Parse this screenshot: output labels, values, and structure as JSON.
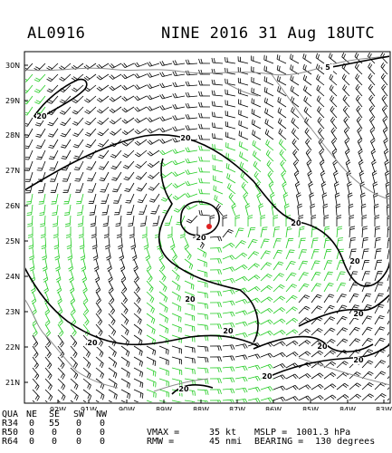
{
  "header": {
    "storm_id": "AL0916",
    "title": "NINE 2016 31 Aug 18UTC"
  },
  "colors": {
    "coast": "#8c8c8c",
    "barb_green": "#22cc22",
    "barb_black": "#000000",
    "contour": "#000000",
    "center_dot": "#e02020"
  },
  "map": {
    "lat_labels": [
      "30N",
      "29N",
      "28N",
      "27N",
      "26N",
      "25N",
      "24N",
      "23N",
      "22N",
      "21N"
    ],
    "lon_labels": [
      "92W",
      "91W",
      "90W",
      "89W",
      "88W",
      "87W",
      "86W",
      "85W",
      "84W",
      "83W"
    ],
    "contour_labels": [
      "5",
      "20",
      "20",
      "20",
      "20",
      "20",
      "20",
      "20",
      "20",
      "20",
      "20",
      "20",
      "20",
      "20"
    ]
  },
  "table": {
    "header": [
      "QUA",
      "NE",
      "SE",
      "SW",
      "NW"
    ],
    "rows": [
      {
        "name": "R34",
        "values": [
          "0",
          "55",
          "0",
          "0"
        ]
      },
      {
        "name": "R50",
        "values": [
          "0",
          "0",
          "0",
          "0"
        ]
      },
      {
        "name": "R64",
        "values": [
          "0",
          "0",
          "0",
          "0"
        ]
      }
    ],
    "vmax_label": "VMAX =",
    "vmax_value": "35 kt",
    "mslp_label": "MSLP =",
    "mslp_value": "1001.3 hPa",
    "rmw_label": "RMW =",
    "rmw_value": "45 nmi",
    "bearing_label": "BEARING =",
    "bearing_value": "130 degrees"
  }
}
